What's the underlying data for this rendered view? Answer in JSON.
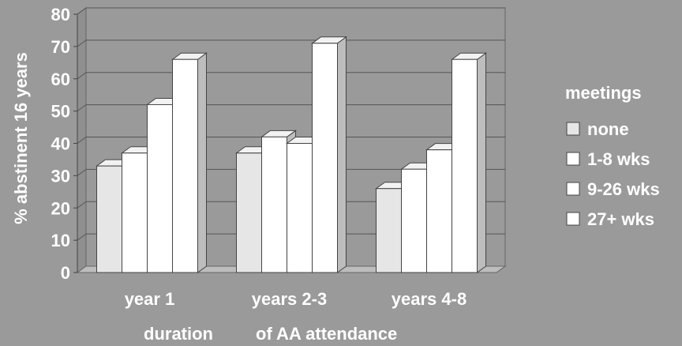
{
  "chart_data": {
    "type": "bar",
    "categories": [
      "year 1",
      "years 2-3",
      "years 4-8"
    ],
    "series": [
      {
        "name": "none",
        "values": [
          33,
          37,
          26
        ],
        "color": "#e6e6e6"
      },
      {
        "name": "1-8 wks",
        "values": [
          37,
          42,
          32
        ],
        "color": "#ffffff"
      },
      {
        "name": "9-26 wks",
        "values": [
          52,
          40,
          38
        ],
        "color": "#ffffff"
      },
      {
        "name": "27+ wks",
        "values": [
          66,
          71,
          66
        ],
        "color": "#ffffff"
      }
    ],
    "ylabel": "% abstinent 16 years",
    "xlabel_parts": [
      "duration",
      "of AA attendance"
    ],
    "legend_title": "meetings",
    "legend_position": "right",
    "ylim": [
      0,
      80
    ],
    "yticks": [
      0,
      10,
      20,
      30,
      40,
      50,
      60,
      70,
      80
    ],
    "grid": true,
    "three_d": true
  }
}
